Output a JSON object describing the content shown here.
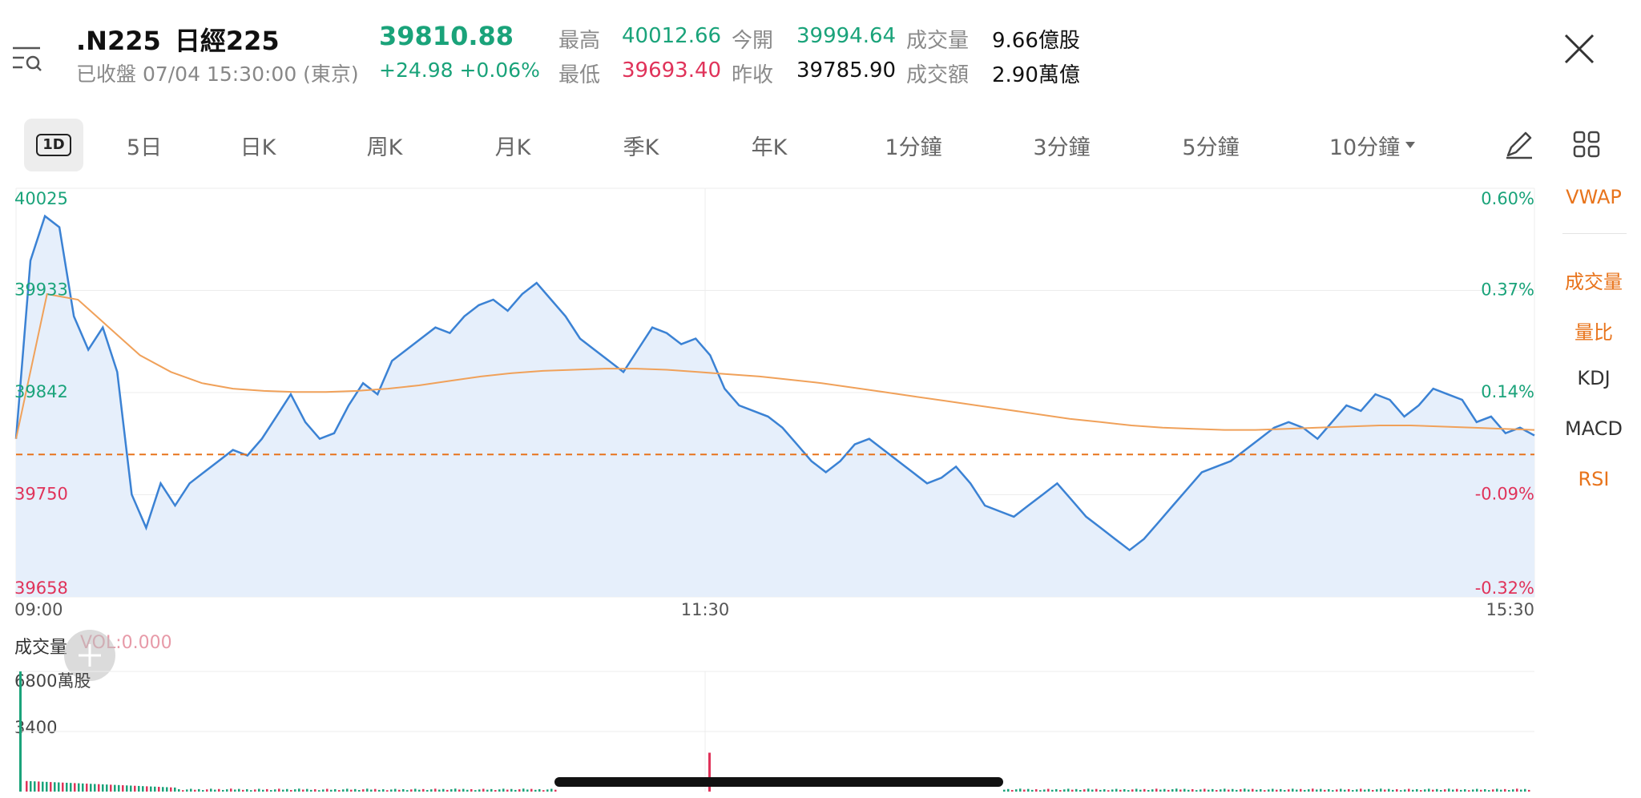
{
  "header": {
    "symbol": ".N225",
    "name": "日經225",
    "status": "已收盤 07/04 15:30:00 (東京)",
    "price": "39810.88",
    "change": "+24.98 +0.06%",
    "stats": {
      "high_label": "最高",
      "high": "40012.66",
      "open_label": "今開",
      "open": "39994.64",
      "vol_label": "成交量",
      "vol": "9.66億股",
      "low_label": "最低",
      "low": "39693.40",
      "prev_label": "昨收",
      "prev": "39785.90",
      "amt_label": "成交額",
      "amt": "2.90萬億"
    }
  },
  "tabs": {
    "t1d": "1D",
    "t5d": "5日",
    "day": "日K",
    "week": "周K",
    "month": "月K",
    "quarter": "季K",
    "year": "年K",
    "m1": "1分鐘",
    "m3": "3分鐘",
    "m5": "5分鐘",
    "m10": "10分鐘"
  },
  "side_indicators": {
    "vwap": "VWAP",
    "volume": "成交量",
    "ratio": "量比",
    "kdj": "KDJ",
    "macd": "MACD",
    "rsi": "RSI"
  },
  "volume_panel": {
    "title": "成交量",
    "vol_label": "VOL:0.000",
    "y_top": "6800萬股",
    "y_mid": "3400"
  },
  "colors": {
    "up": "#1aa37a",
    "down": "#e0335a",
    "line": "#3b82d4",
    "fill": "#e6effb",
    "vwap": "#f0a15a",
    "baseline": "#e8741c",
    "indicator_active": "#e8741c"
  },
  "chart_data": {
    "type": "line",
    "title": "",
    "x_ticks": [
      "09:00",
      "11:30",
      "15:30"
    ],
    "y_ticks_left": [
      "40025",
      "39933",
      "39842",
      "39750",
      "39658"
    ],
    "y_ticks_right": [
      "0.60%",
      "0.37%",
      "0.14%",
      "-0.09%",
      "-0.32%"
    ],
    "ylim": [
      39658,
      40025
    ],
    "baseline": 39785.9,
    "series": [
      {
        "values": [
          39800,
          39960,
          40000,
          39990,
          39910,
          39880,
          39900,
          39860,
          39750,
          39720,
          39760,
          39740,
          39760,
          39770,
          39780,
          39790,
          39785,
          39800,
          39820,
          39840,
          39815,
          39800,
          39805,
          39830,
          39850,
          39840,
          39870,
          39880,
          39890,
          39900,
          39895,
          39910,
          39920,
          39925,
          39915,
          39930,
          39940,
          39925,
          39910,
          39890,
          39880,
          39870,
          39860,
          39880,
          39900,
          39895,
          39885,
          39890,
          39875,
          39845,
          39830,
          39825,
          39820,
          39810,
          39795,
          39780,
          39770,
          39780,
          39795,
          39800,
          39790,
          39780,
          39770,
          39760,
          39765,
          39775,
          39760,
          39740,
          39735,
          39730,
          39740,
          39750,
          39760,
          39745,
          39730,
          39720,
          39710,
          39700,
          39710,
          39725,
          39740,
          39755,
          39770,
          39775,
          39780,
          39790,
          39800,
          39810,
          39815,
          39810,
          39800,
          39815,
          39830,
          39825,
          39840,
          39835,
          39820,
          39830,
          39845,
          39840,
          39835,
          39815,
          39820,
          39805,
          39810,
          39803
        ]
      },
      {
        "name": "VWAP",
        "values": [
          39800,
          39930,
          39925,
          39900,
          39875,
          39860,
          39850,
          39845,
          39843,
          39842,
          39842,
          39843,
          39845,
          39848,
          39852,
          39856,
          39859,
          39861,
          39862,
          39863,
          39863,
          39862,
          39860,
          39858,
          39856,
          39853,
          39850,
          39846,
          39842,
          39838,
          39834,
          39830,
          39826,
          39822,
          39818,
          39815,
          39812,
          39810,
          39809,
          39808,
          39808,
          39809,
          39810,
          39811,
          39812,
          39812,
          39811,
          39810,
          39809,
          39808
        ]
      }
    ],
    "volume": {
      "y_ticks": [
        "6800萬股",
        "3400"
      ],
      "peak_open": 6800,
      "peak_1130": 2200
    }
  }
}
